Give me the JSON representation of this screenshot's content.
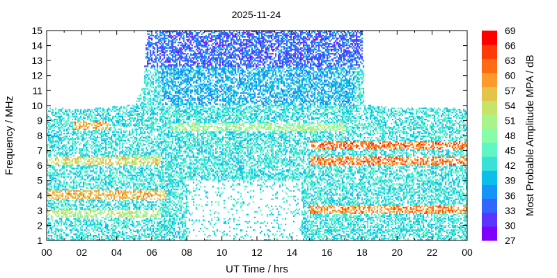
{
  "chart_data": {
    "type": "heatmap",
    "title": "2025-11-24",
    "xlabel": "UT Time / hrs",
    "ylabel": "Frequency / MHz",
    "xlim": [
      0,
      24
    ],
    "ylim": [
      1,
      15
    ],
    "x_ticks": [
      "00",
      "02",
      "04",
      "06",
      "08",
      "10",
      "12",
      "14",
      "16",
      "18",
      "20",
      "22",
      "00"
    ],
    "y_ticks": [
      "1",
      "2",
      "3",
      "4",
      "5",
      "6",
      "7",
      "8",
      "9",
      "10",
      "11",
      "12",
      "13",
      "14",
      "15"
    ],
    "colorbar": {
      "label": "Most Probable Amplitude MPA / dB",
      "min": 27,
      "max": 69,
      "ticks": [
        "27",
        "30",
        "33",
        "36",
        "39",
        "42",
        "45",
        "48",
        "51",
        "54",
        "57",
        "60",
        "63",
        "66",
        "69"
      ],
      "colors": [
        "#7f00ff",
        "#5a35ff",
        "#3266fc",
        "#1595f6",
        "#0cbfea",
        "#3ae1d9",
        "#60f6c4",
        "#88fda9",
        "#a8f48b",
        "#c6e36c",
        "#e3c349",
        "#fd9a2b",
        "#ff6a14",
        "#ff3a08",
        "#ff0000"
      ]
    },
    "upper_frequency_limit_mhz": [
      [
        0,
        9.8
      ],
      [
        1,
        9.8
      ],
      [
        2,
        9.7
      ],
      [
        3,
        9.8
      ],
      [
        4,
        9.9
      ],
      [
        5,
        10.0
      ],
      [
        5.5,
        11.5
      ],
      [
        5.7,
        15.0
      ],
      [
        6,
        15.0
      ],
      [
        8,
        15.0
      ],
      [
        10,
        15.0
      ],
      [
        12,
        15.0
      ],
      [
        14,
        15.0
      ],
      [
        16,
        15.0
      ],
      [
        18,
        15.0
      ],
      [
        18.1,
        10.0
      ],
      [
        19,
        9.9
      ],
      [
        20,
        9.8
      ],
      [
        21,
        9.8
      ],
      [
        22,
        9.8
      ],
      [
        23,
        9.8
      ],
      [
        24,
        9.7
      ]
    ],
    "strong_bands": [
      {
        "t0": 0,
        "t1": 6.8,
        "freq": 4.0,
        "level": 61
      },
      {
        "t0": 0,
        "t1": 6.5,
        "freq": 2.7,
        "level": 55
      },
      {
        "t0": 1.5,
        "t1": 3.5,
        "freq": 8.6,
        "level": 62
      },
      {
        "t0": 0,
        "t1": 6.5,
        "freq": 6.3,
        "level": 58
      },
      {
        "t0": 15,
        "t1": 24,
        "freq": 6.3,
        "level": 65
      },
      {
        "t0": 15,
        "t1": 24,
        "freq": 7.3,
        "level": 66
      },
      {
        "t0": 15,
        "t1": 24,
        "freq": 3.0,
        "level": 64
      },
      {
        "t0": 7,
        "t1": 17,
        "freq": 8.5,
        "level": 53
      }
    ]
  }
}
